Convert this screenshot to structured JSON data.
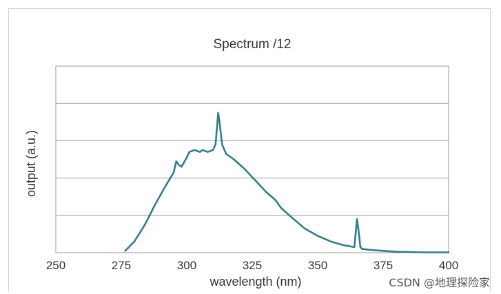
{
  "chart_data": {
    "type": "line",
    "title": "Spectrum /12",
    "xlabel": "wavelength (nm)",
    "ylabel": "output (a.u.)",
    "xlim": [
      250,
      400
    ],
    "ylim": [
      0,
      1.0
    ],
    "x_ticks": [
      "250",
      "275",
      "300",
      "325",
      "350",
      "375",
      "400"
    ],
    "grid": true,
    "series": [
      {
        "color": "#2f7d8e",
        "x": [
          276.5,
          280,
          284,
          288,
          292,
          295,
          296,
          297,
          298,
          300,
          301,
          303,
          305,
          306,
          308,
          310,
          311,
          311.7,
          312,
          312.5,
          313.5,
          315,
          318,
          322,
          326,
          330,
          334,
          336,
          340,
          345,
          350,
          355,
          360,
          364,
          364.6,
          365,
          365.5,
          366,
          366.3,
          367,
          370,
          375,
          380,
          390,
          400
        ],
        "y": [
          0.01,
          0.06,
          0.15,
          0.26,
          0.36,
          0.43,
          0.49,
          0.47,
          0.46,
          0.51,
          0.54,
          0.55,
          0.54,
          0.55,
          0.54,
          0.55,
          0.58,
          0.7,
          0.75,
          0.7,
          0.58,
          0.53,
          0.5,
          0.45,
          0.39,
          0.33,
          0.28,
          0.24,
          0.19,
          0.13,
          0.09,
          0.06,
          0.04,
          0.03,
          0.12,
          0.18,
          0.13,
          0.07,
          0.03,
          0.02,
          0.015,
          0.01,
          0.005,
          0.002,
          0.002
        ]
      }
    ]
  },
  "watermark": "CSDN @地理探险家"
}
